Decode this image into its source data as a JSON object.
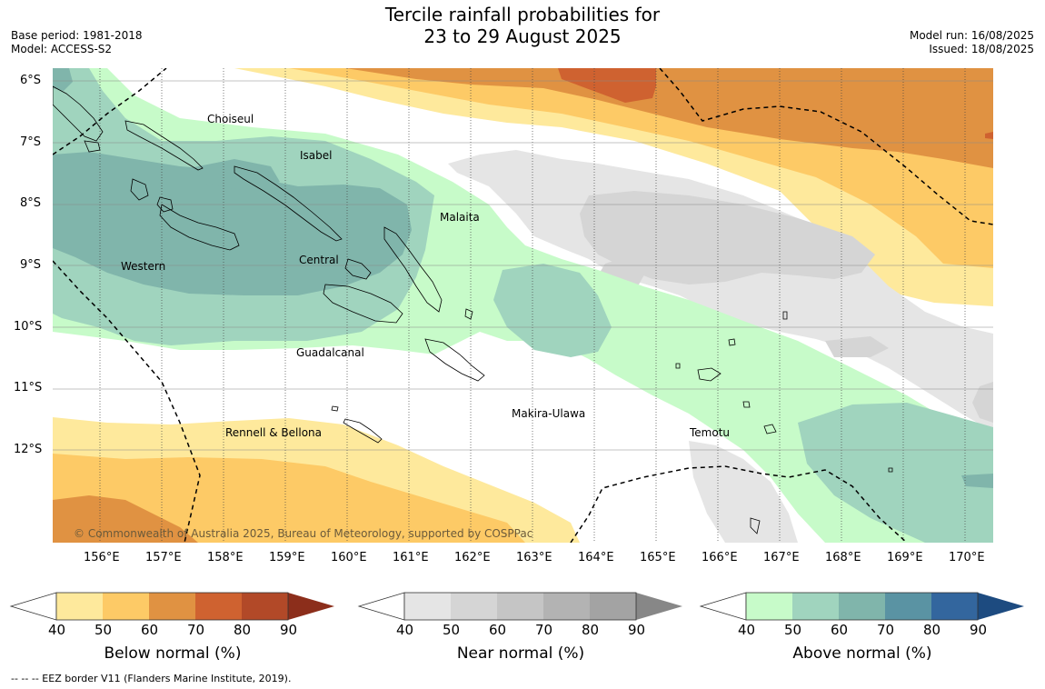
{
  "title": {
    "line1": "Tercile rainfall probabilities for",
    "line2": "23 to 29 August 2025"
  },
  "meta": {
    "base_period": "Base period: 1981-2018",
    "model": "Model: ACCESS-S2",
    "model_run": "Model run: 16/08/2025",
    "issued": "Issued: 18/08/2025"
  },
  "map": {
    "lat_labels": [
      "6°S",
      "7°S",
      "8°S",
      "9°S",
      "10°S",
      "11°S",
      "12°S"
    ],
    "lon_labels": [
      "156°E",
      "157°E",
      "158°E",
      "159°E",
      "160°E",
      "161°E",
      "162°E",
      "163°E",
      "164°E",
      "165°E",
      "166°E",
      "167°E",
      "168°E",
      "169°E",
      "170°E"
    ],
    "regions": [
      "Choiseul",
      "Isabel",
      "Malaita",
      "Western",
      "Central",
      "Guadalcanal",
      "Makira-Ulawa",
      "Rennell & Bellona",
      "Temotu"
    ],
    "copyright": "© Commonwealth of Australia 2025, Bureau of Meteorology, supported by COSPPac",
    "eez_note": "--  --  -- EEZ border V11 (Flanders Marine Institute, 2019)."
  },
  "legends": [
    {
      "title": "Below normal (%)",
      "ticks": [
        "40",
        "50",
        "60",
        "70",
        "80",
        "90"
      ],
      "colors": [
        "#fee99c",
        "#fdca66",
        "#e09242",
        "#cf6230",
        "#b24928"
      ],
      "over_color": "#8c2e1b"
    },
    {
      "title": "Near normal (%)",
      "ticks": [
        "40",
        "50",
        "60",
        "70",
        "80",
        "90"
      ],
      "colors": [
        "#e5e5e5",
        "#d5d5d5",
        "#c5c5c5",
        "#b3b3b3",
        "#a3a3a3"
      ],
      "over_color": "#878787"
    },
    {
      "title": "Above normal (%)",
      "ticks": [
        "40",
        "50",
        "60",
        "70",
        "80",
        "90"
      ],
      "colors": [
        "#c7fbc9",
        "#a0d4be",
        "#80b5ab",
        "#5a93a3",
        "#33669e"
      ],
      "over_color": "#1d4b80"
    }
  ]
}
